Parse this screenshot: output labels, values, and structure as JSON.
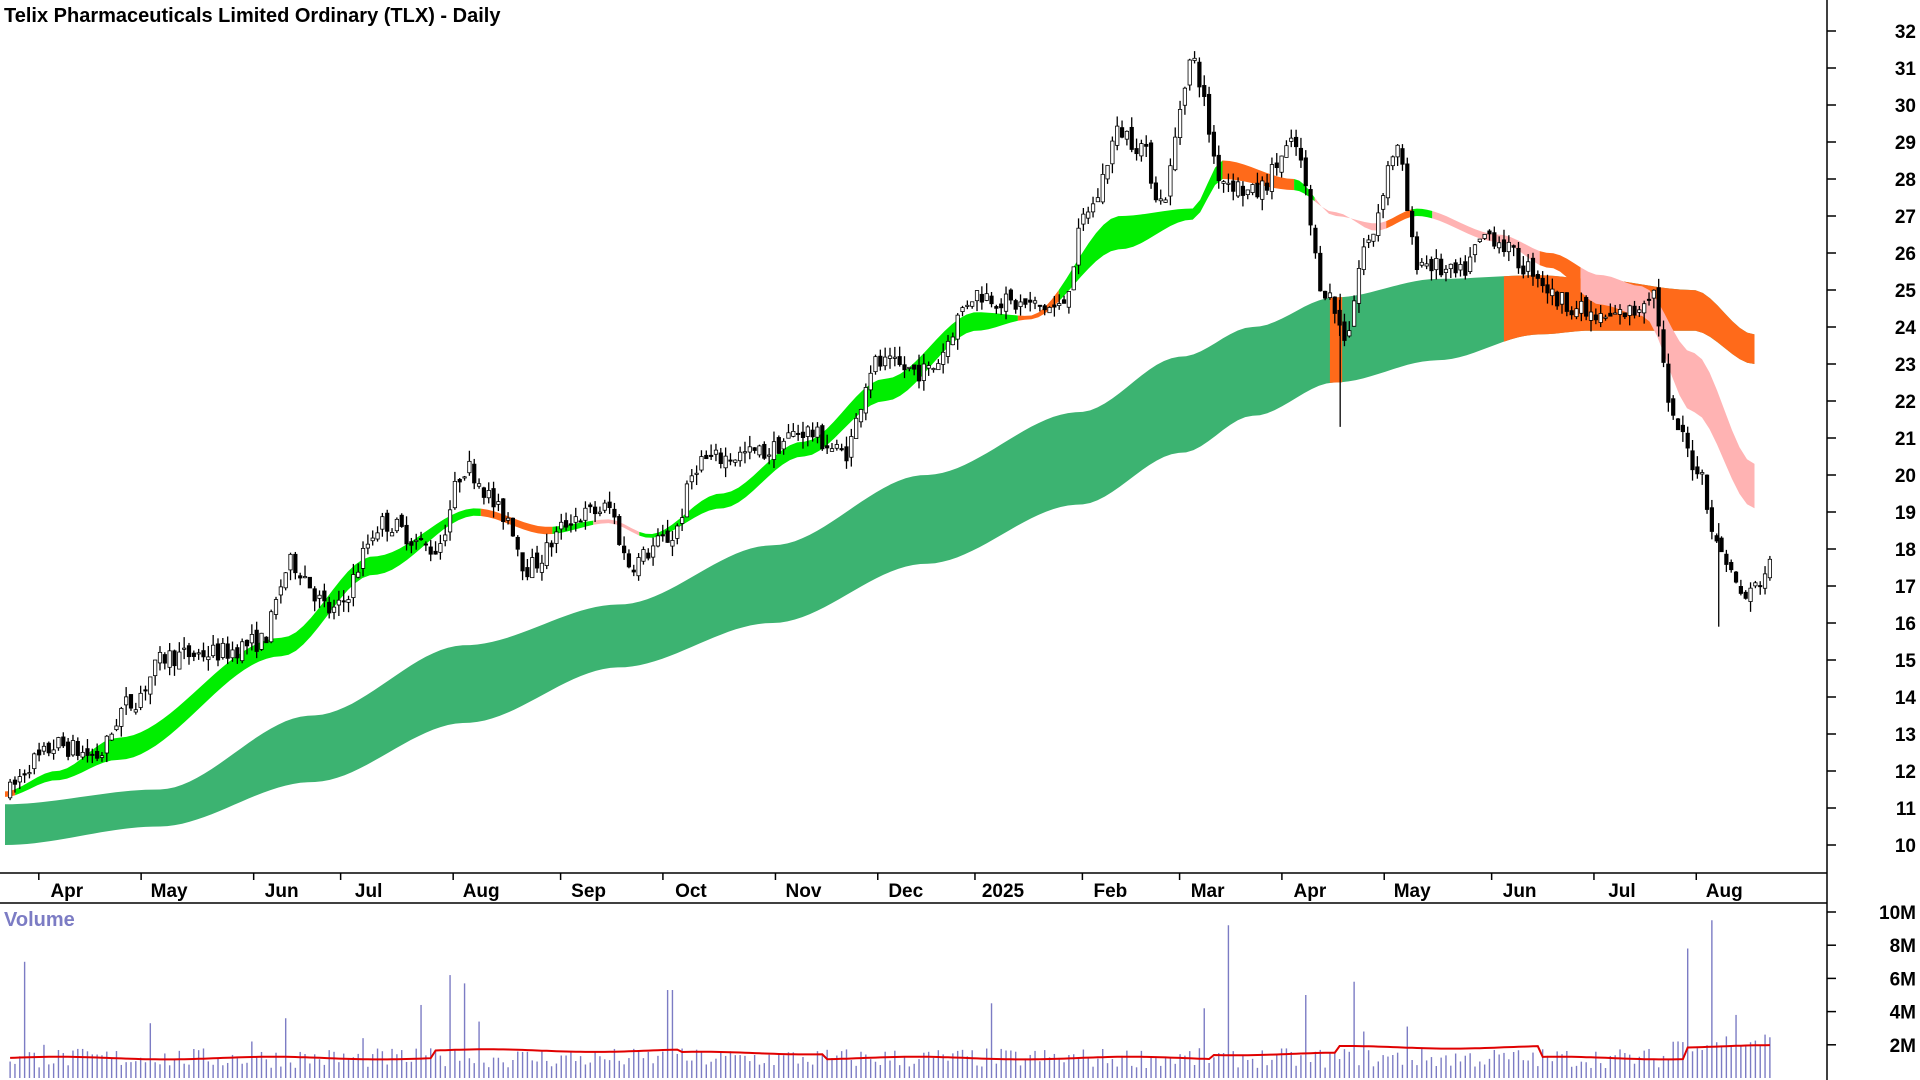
{
  "chart_data": {
    "type": "candlestick",
    "title": "Telix Pharmaceuticals Limited Ordinary (TLX) - Daily",
    "volume_label": "Volume",
    "colors": {
      "candle": "#000000",
      "long_ribbon": "#3cb371",
      "short_ribbon_up": "#00ee00",
      "short_ribbon_down": "#ff6a1a",
      "short_ribbon_weak": "#ffb3b3",
      "volume_bar": "#7c7cc4",
      "volume_average": "#e00000"
    },
    "y_axis": {
      "min": 9.3,
      "max": 32.4,
      "ticks": [
        10,
        11,
        12,
        13,
        14,
        15,
        16,
        17,
        18,
        19,
        20,
        21,
        22,
        23,
        24,
        25,
        26,
        27,
        28,
        29,
        30,
        31,
        32
      ]
    },
    "x_tick_labels": [
      "Apr",
      "May",
      "Jun",
      "Jul",
      "Aug",
      "Sep",
      "Oct",
      "Nov",
      "Dec",
      "2025",
      "Feb",
      "Mar",
      "Apr",
      "May",
      "Jun",
      "Jul",
      "Aug"
    ],
    "volume_axis": {
      "min": 0,
      "max": 10000000,
      "tick_labels": [
        "10M",
        "8M",
        "6M",
        "4M",
        "2M"
      ],
      "tick_values": [
        10000000,
        8000000,
        6000000,
        4000000,
        2000000
      ]
    },
    "price_checkpoints": [
      {
        "m": 0,
        "p": 11.4
      },
      {
        "m": 0.3,
        "p": 12.3
      },
      {
        "m": 0.5,
        "p": 12.7
      },
      {
        "m": 0.9,
        "p": 12.4
      },
      {
        "m": 1.2,
        "p": 13.8
      },
      {
        "m": 1.6,
        "p": 15.1
      },
      {
        "m": 2.1,
        "p": 15.2
      },
      {
        "m": 2.5,
        "p": 15.5
      },
      {
        "m": 2.8,
        "p": 17.6
      },
      {
        "m": 3.2,
        "p": 16.3
      },
      {
        "m": 3.7,
        "p": 18.7
      },
      {
        "m": 4.2,
        "p": 18.0
      },
      {
        "m": 4.5,
        "p": 20.2
      },
      {
        "m": 4.9,
        "p": 18.9
      },
      {
        "m": 5.1,
        "p": 17.5
      },
      {
        "m": 5.6,
        "p": 18.9
      },
      {
        "m": 5.9,
        "p": 19.1
      },
      {
        "m": 6.1,
        "p": 17.6
      },
      {
        "m": 6.5,
        "p": 18.3
      },
      {
        "m": 6.8,
        "p": 20.4
      },
      {
        "m": 7.4,
        "p": 20.6
      },
      {
        "m": 7.8,
        "p": 21.2
      },
      {
        "m": 8.2,
        "p": 20.6
      },
      {
        "m": 8.5,
        "p": 23.0
      },
      {
        "m": 9.0,
        "p": 22.8
      },
      {
        "m": 9.5,
        "p": 24.9
      },
      {
        "m": 9.9,
        "p": 24.6
      },
      {
        "m": 10.3,
        "p": 24.5
      },
      {
        "m": 10.6,
        "p": 27.2
      },
      {
        "m": 10.9,
        "p": 29.3
      },
      {
        "m": 11.1,
        "p": 28.9
      },
      {
        "m": 11.3,
        "p": 27.4
      },
      {
        "m": 11.6,
        "p": 31.2
      },
      {
        "m": 11.9,
        "p": 28.0
      },
      {
        "m": 12.2,
        "p": 27.6
      },
      {
        "m": 12.6,
        "p": 28.9
      },
      {
        "m": 12.9,
        "p": 25.0
      },
      {
        "m": 13.1,
        "p": 23.8
      },
      {
        "m": 13.3,
        "p": 26.2
      },
      {
        "m": 13.6,
        "p": 28.8
      },
      {
        "m": 13.8,
        "p": 25.8
      },
      {
        "m": 14.2,
        "p": 25.4
      },
      {
        "m": 14.5,
        "p": 26.5
      },
      {
        "m": 14.9,
        "p": 25.6
      },
      {
        "m": 15.2,
        "p": 24.7
      },
      {
        "m": 15.6,
        "p": 24.2
      },
      {
        "m": 15.9,
        "p": 24.4
      },
      {
        "m": 16.1,
        "p": 25.0
      },
      {
        "m": 16.3,
        "p": 21.4
      },
      {
        "m": 16.55,
        "p": 20.2
      },
      {
        "m": 16.75,
        "p": 18.0
      },
      {
        "m": 17.0,
        "p": 16.7
      },
      {
        "m": 17.3,
        "p": 17.6
      }
    ],
    "short_ribbon_checkpoints": [
      {
        "m": 0,
        "a": 11.45,
        "b": 11.3
      },
      {
        "m": 0.5,
        "a": 12.0,
        "b": 11.75
      },
      {
        "m": 1.1,
        "a": 12.9,
        "b": 12.3
      },
      {
        "m": 2.7,
        "a": 15.6,
        "b": 15.1
      },
      {
        "m": 3.6,
        "a": 17.8,
        "b": 17.3
      },
      {
        "m": 4.6,
        "a": 19.1,
        "b": 18.9
      },
      {
        "m": 5.3,
        "a": 18.6,
        "b": 18.4
      },
      {
        "m": 5.9,
        "a": 18.8,
        "b": 18.7
      },
      {
        "m": 6.3,
        "a": 18.4,
        "b": 18.3
      },
      {
        "m": 7.0,
        "a": 19.5,
        "b": 19.1
      },
      {
        "m": 7.8,
        "a": 20.9,
        "b": 20.5
      },
      {
        "m": 8.6,
        "a": 22.6,
        "b": 22.0
      },
      {
        "m": 9.5,
        "a": 24.4,
        "b": 23.9
      },
      {
        "m": 10.0,
        "a": 24.3,
        "b": 24.2
      },
      {
        "m": 10.9,
        "a": 27.0,
        "b": 26.1
      },
      {
        "m": 11.6,
        "a": 27.2,
        "b": 26.9
      },
      {
        "m": 11.9,
        "a": 28.5,
        "b": 28.0
      },
      {
        "m": 12.6,
        "a": 28.0,
        "b": 27.7
      },
      {
        "m": 13.0,
        "a": 27.0,
        "b": 27.1
      },
      {
        "m": 13.4,
        "a": 26.8,
        "b": 26.6
      },
      {
        "m": 13.8,
        "a": 27.2,
        "b": 27.0
      },
      {
        "m": 14.6,
        "a": 26.5,
        "b": 26.3
      },
      {
        "m": 15.1,
        "a": 26.0,
        "b": 25.6
      },
      {
        "m": 15.6,
        "a": 25.4,
        "b": 24.6
      },
      {
        "m": 16.0,
        "a": 25.1,
        "b": 24.3
      },
      {
        "m": 16.5,
        "a": 23.3,
        "b": 21.7
      },
      {
        "m": 17.1,
        "a": 20.3,
        "b": 19.1
      }
    ],
    "long_ribbon_checkpoints": [
      {
        "m": 0,
        "a": 11.1,
        "b": 10.0
      },
      {
        "m": 1.5,
        "a": 11.5,
        "b": 10.5
      },
      {
        "m": 3.0,
        "a": 13.5,
        "b": 11.7
      },
      {
        "m": 4.5,
        "a": 15.4,
        "b": 13.3
      },
      {
        "m": 6.0,
        "a": 16.5,
        "b": 14.8
      },
      {
        "m": 7.5,
        "a": 18.1,
        "b": 16.0
      },
      {
        "m": 9.0,
        "a": 20.0,
        "b": 17.6
      },
      {
        "m": 10.5,
        "a": 21.7,
        "b": 19.2
      },
      {
        "m": 11.5,
        "a": 23.2,
        "b": 20.6
      },
      {
        "m": 12.2,
        "a": 24.0,
        "b": 21.6
      },
      {
        "m": 13.0,
        "a": 24.8,
        "b": 22.5
      },
      {
        "m": 14.0,
        "a": 25.3,
        "b": 23.1
      },
      {
        "m": 15.0,
        "a": 25.4,
        "b": 23.8
      },
      {
        "m": 15.5,
        "a": 25.3,
        "b": 23.9
      },
      {
        "m": 16.5,
        "a": 25.0,
        "b": 23.9
      },
      {
        "m": 17.1,
        "a": 23.8,
        "b": 23.0
      }
    ],
    "long_ribbon_down_range": [
      {
        "m0": 12.95,
        "m1": 13.07
      },
      {
        "m0": 14.65,
        "m1": 17.1
      }
    ],
    "short_ribbon_color_ranges": [
      {
        "m0": 0,
        "m1": 0.1,
        "c": "down"
      },
      {
        "m0": 0.1,
        "m1": 4.65,
        "c": "up"
      },
      {
        "m0": 4.65,
        "m1": 5.35,
        "c": "down"
      },
      {
        "m0": 5.35,
        "m1": 5.75,
        "c": "up"
      },
      {
        "m0": 5.75,
        "m1": 6.2,
        "c": "weak"
      },
      {
        "m0": 6.2,
        "m1": 6.45,
        "c": "up"
      },
      {
        "m0": 6.45,
        "m1": 9.9,
        "c": "up"
      },
      {
        "m0": 9.9,
        "m1": 10.3,
        "c": "down"
      },
      {
        "m0": 10.3,
        "m1": 11.9,
        "c": "up"
      },
      {
        "m0": 11.9,
        "m1": 12.6,
        "c": "down"
      },
      {
        "m0": 12.6,
        "m1": 12.8,
        "c": "up"
      },
      {
        "m0": 12.8,
        "m1": 13.5,
        "c": "weak"
      },
      {
        "m0": 13.5,
        "m1": 13.75,
        "c": "down"
      },
      {
        "m0": 13.75,
        "m1": 13.95,
        "c": "up"
      },
      {
        "m0": 13.95,
        "m1": 15.0,
        "c": "weak"
      },
      {
        "m0": 15.0,
        "m1": 15.4,
        "c": "down"
      },
      {
        "m0": 15.4,
        "m1": 16.0,
        "c": "weak"
      },
      {
        "m0": 16.0,
        "m1": 17.1,
        "c": "weak"
      }
    ],
    "volume_spikes": [
      {
        "m": 0.2,
        "v": 7000000
      },
      {
        "m": 0.4,
        "v": 2000000
      },
      {
        "m": 1.4,
        "v": 3300000
      },
      {
        "m": 2.4,
        "v": 2200000
      },
      {
        "m": 2.75,
        "v": 3600000
      },
      {
        "m": 3.5,
        "v": 2400000
      },
      {
        "m": 4.05,
        "v": 4400000
      },
      {
        "m": 4.35,
        "v": 6200000
      },
      {
        "m": 4.5,
        "v": 5700000
      },
      {
        "m": 4.65,
        "v": 3400000
      },
      {
        "m": 6.5,
        "v": 5300000
      },
      {
        "m": 9.65,
        "v": 4500000
      },
      {
        "m": 11.7,
        "v": 4200000
      },
      {
        "m": 11.95,
        "v": 9200000
      },
      {
        "m": 12.7,
        "v": 5000000
      },
      {
        "m": 13.2,
        "v": 5800000
      },
      {
        "m": 13.3,
        "v": 2800000
      },
      {
        "m": 13.7,
        "v": 3100000
      },
      {
        "m": 16.45,
        "v": 7800000
      },
      {
        "m": 16.7,
        "v": 9500000
      },
      {
        "m": 16.9,
        "v": 3800000
      }
    ]
  }
}
